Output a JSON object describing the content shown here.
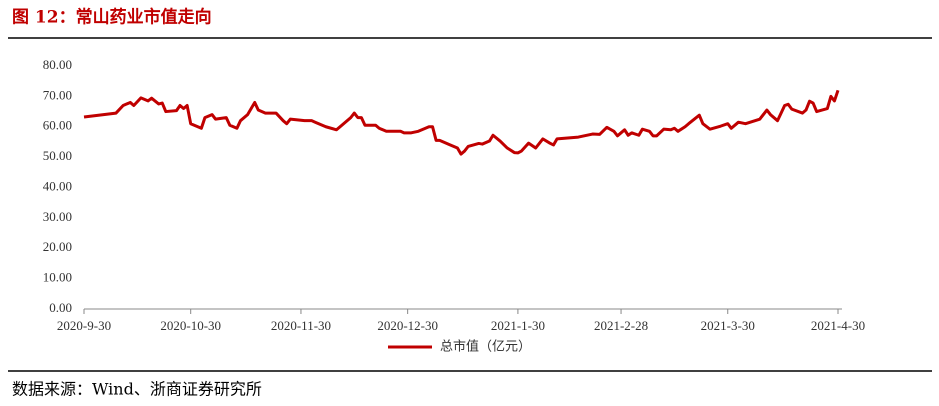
{
  "title": "图 12：常山药业市值走向",
  "source": "数据来源：Wind、浙商证券研究所",
  "chart_data": {
    "type": "line",
    "x": [
      "2020-9-30",
      "2020-10-9",
      "2020-10-11",
      "2020-10-13",
      "2020-10-14",
      "2020-10-16",
      "2020-10-18",
      "2020-10-19",
      "2020-10-21",
      "2020-10-22",
      "2020-10-23",
      "2020-10-26",
      "2020-10-27",
      "2020-10-28",
      "2020-10-29",
      "2020-10-30",
      "2020-11-2",
      "2020-11-3",
      "2020-11-5",
      "2020-11-6",
      "2020-11-9",
      "2020-11-10",
      "2020-11-12",
      "2020-11-13",
      "2020-11-15",
      "2020-11-17",
      "2020-11-18",
      "2020-11-20",
      "2020-11-23",
      "2020-11-25",
      "2020-11-26",
      "2020-11-27",
      "2020-12-1",
      "2020-12-3",
      "2020-12-4",
      "2020-12-7",
      "2020-12-10",
      "2020-12-11",
      "2020-12-14",
      "2020-12-15",
      "2020-12-16",
      "2020-12-17",
      "2020-12-18",
      "2020-12-21",
      "2020-12-22",
      "2020-12-24",
      "2020-12-28",
      "2020-12-29",
      "2020-12-31",
      "2021-1-2",
      "2021-1-5",
      "2021-1-6",
      "2021-1-7",
      "2021-1-8",
      "2021-1-11",
      "2021-1-13",
      "2021-1-14",
      "2021-1-15",
      "2021-1-16",
      "2021-1-19",
      "2021-1-20",
      "2021-1-22",
      "2021-1-23",
      "2021-1-25",
      "2021-1-27",
      "2021-1-29",
      "2021-1-30",
      "2021-1-31",
      "2021-2-2",
      "2021-2-4",
      "2021-2-6",
      "2021-2-8",
      "2021-2-9",
      "2021-2-10",
      "2021-2-13",
      "2021-2-16",
      "2021-2-20",
      "2021-2-22",
      "2021-2-24",
      "2021-2-26",
      "2021-2-27",
      "2021-2-28",
      "2021-3-1",
      "2021-3-2",
      "2021-3-3",
      "2021-3-5",
      "2021-3-6",
      "2021-3-8",
      "2021-3-9",
      "2021-3-10",
      "2021-3-12",
      "2021-3-14",
      "2021-3-15",
      "2021-3-16",
      "2021-3-18",
      "2021-3-19",
      "2021-3-22",
      "2021-3-23",
      "2021-3-25",
      "2021-3-28",
      "2021-3-30",
      "2021-3-31",
      "2021-4-2",
      "2021-4-4",
      "2021-4-8",
      "2021-4-10",
      "2021-4-11",
      "2021-4-13",
      "2021-4-14",
      "2021-4-15",
      "2021-4-16",
      "2021-4-17",
      "2021-4-20",
      "2021-4-21",
      "2021-4-22",
      "2021-4-23",
      "2021-4-24",
      "2021-4-27",
      "2021-4-28",
      "2021-4-29",
      "2021-4-30"
    ],
    "series": [
      {
        "name": "总市值（亿元）",
        "color": "#c00000",
        "values": [
          63.2,
          64.5,
          67,
          68,
          67,
          69.5,
          68.5,
          69.4,
          67.5,
          67.8,
          65,
          65.3,
          67,
          66,
          67,
          61,
          59.5,
          63,
          64,
          62.5,
          63,
          60.5,
          59.5,
          62,
          64,
          68,
          65.5,
          64.5,
          64.5,
          62,
          61,
          62.5,
          62,
          62,
          61.5,
          60,
          59,
          60,
          63,
          64.5,
          63,
          63,
          60.5,
          60.5,
          59.5,
          58.5,
          58.5,
          58,
          58,
          58.5,
          60,
          60,
          55.5,
          55.5,
          54,
          53,
          51,
          52,
          53.5,
          54.5,
          54.3,
          55.3,
          57.2,
          55.3,
          53,
          51.5,
          51.4,
          52,
          54.6,
          53,
          56,
          54.6,
          54,
          56,
          56.3,
          56.6,
          57.6,
          57.5,
          59.8,
          58.5,
          57,
          58,
          59,
          57.2,
          58,
          57.2,
          59.2,
          58.5,
          57,
          57,
          59.2,
          59,
          59.5,
          58.5,
          60,
          61,
          63.8,
          61,
          59.2,
          60.2,
          61,
          59.5,
          61.5,
          61,
          62.5,
          65.5,
          64,
          62,
          64.5,
          67,
          67.4,
          65.8,
          64.5,
          65.5,
          68.4,
          67.8,
          65,
          66,
          70,
          68.5,
          72
        ]
      }
    ],
    "xticks": [
      "2020-9-30",
      "2020-10-30",
      "2020-11-30",
      "2020-12-30",
      "2021-1-30",
      "2021-2-28",
      "2021-3-30",
      "2021-4-30"
    ],
    "xlim": [
      "2020-9-30",
      "2021-4-30"
    ],
    "ylim": [
      0,
      80
    ],
    "yticks": [
      {
        "value": 0,
        "label": "0.00"
      },
      {
        "value": 10,
        "label": "10.00"
      },
      {
        "value": 20,
        "label": "20.00"
      },
      {
        "value": 30,
        "label": "30.00"
      },
      {
        "value": 40,
        "label": "40.00"
      },
      {
        "value": 50,
        "label": "50.00"
      },
      {
        "value": 60,
        "label": "60.00"
      },
      {
        "value": 70,
        "label": "70.00"
      },
      {
        "value": 80,
        "label": "80.00"
      }
    ],
    "grid": false
  }
}
